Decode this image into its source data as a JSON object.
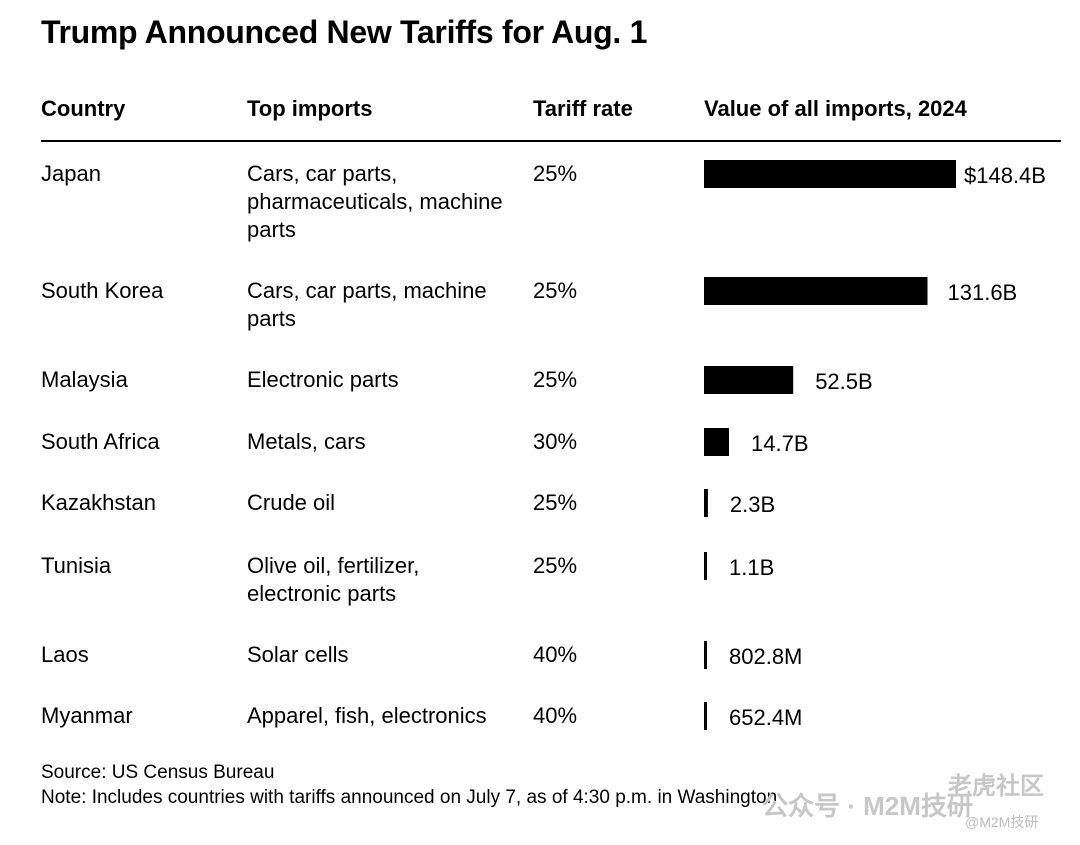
{
  "title": "Trump Announced New Tariffs for Aug. 1",
  "columns": {
    "country": "Country",
    "imports": "Top imports",
    "rate": "Tariff rate",
    "value": "Value of all imports, 2024"
  },
  "rows": [
    {
      "country": "Japan",
      "imports": "Cars, car parts, pharmaceuticals, machine parts",
      "rate": "25%",
      "value_label": "$148.4B"
    },
    {
      "country": "South Korea",
      "imports": "Cars, car parts, machine parts",
      "rate": "25%",
      "value_label": "131.6B"
    },
    {
      "country": "Malaysia",
      "imports": "Electronic parts",
      "rate": "25%",
      "value_label": "52.5B"
    },
    {
      "country": "South Africa",
      "imports": "Metals, cars",
      "rate": "30%",
      "value_label": "14.7B"
    },
    {
      "country": "Kazakhstan",
      "imports": "Crude oil",
      "rate": "25%",
      "value_label": "2.3B"
    },
    {
      "country": "Tunisia",
      "imports": "Olive oil, fertilizer, electronic parts",
      "rate": "25%",
      "value_label": "1.1B"
    },
    {
      "country": "Laos",
      "imports": "Solar cells",
      "rate": "40%",
      "value_label": "802.8M"
    },
    {
      "country": "Myanmar",
      "imports": "Apparel, fish, electronics",
      "rate": "40%",
      "value_label": "652.4M"
    }
  ],
  "chart_data": {
    "type": "bar",
    "orientation": "horizontal",
    "title": "Value of all imports, 2024",
    "unit": "billion USD",
    "categories": [
      "Japan",
      "South Korea",
      "Malaysia",
      "South Africa",
      "Kazakhstan",
      "Tunisia",
      "Laos",
      "Myanmar"
    ],
    "values": [
      148.4,
      131.6,
      52.5,
      14.7,
      2.3,
      1.1,
      0.8028,
      0.6524
    ],
    "bar_color": "#000000",
    "grid": false
  },
  "footer": {
    "source": "Source: US Census Bureau",
    "note": "Note: Includes countries with tariffs announced on July 7, as of 4:30 p.m. in Washington"
  },
  "watermark": {
    "main": "公众号 · M2M技研",
    "corner_top": "老虎社区",
    "corner_bottom": "@M2M技研"
  }
}
